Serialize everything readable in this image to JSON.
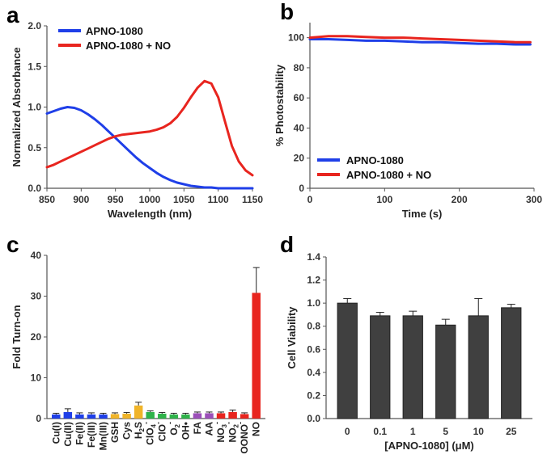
{
  "chart_data": [
    {
      "panel": "a",
      "type": "line",
      "xlabel": "Wavelength (nm)",
      "ylabel": "Normalized Absorbance",
      "xlim": [
        850,
        1150
      ],
      "ylim": [
        0,
        2.0
      ],
      "xticks": [
        "850",
        "900",
        "950",
        "1000",
        "1050",
        "1100",
        "1150"
      ],
      "yticks": [
        "0.0",
        "0.5",
        "1.0",
        "1.5",
        "2.0"
      ],
      "legend_position": "top-left",
      "series": [
        {
          "name": "APNO-1080",
          "color": "#1f3fe8",
          "x": [
            850,
            860,
            870,
            880,
            890,
            900,
            910,
            920,
            930,
            940,
            950,
            960,
            970,
            980,
            990,
            1000,
            1010,
            1020,
            1030,
            1040,
            1050,
            1060,
            1070,
            1080,
            1090,
            1100,
            1110,
            1120,
            1130,
            1140,
            1150
          ],
          "y": [
            0.92,
            0.95,
            0.98,
            1.0,
            0.99,
            0.96,
            0.91,
            0.85,
            0.78,
            0.7,
            0.62,
            0.54,
            0.46,
            0.38,
            0.31,
            0.25,
            0.19,
            0.14,
            0.1,
            0.07,
            0.05,
            0.03,
            0.02,
            0.01,
            0.01,
            0.0,
            0.0,
            0.0,
            0.0,
            0.0,
            0.0
          ]
        },
        {
          "name": "APNO-1080 + NO",
          "color": "#e8251f",
          "x": [
            850,
            860,
            870,
            880,
            890,
            900,
            910,
            920,
            930,
            940,
            950,
            960,
            970,
            980,
            990,
            1000,
            1010,
            1020,
            1030,
            1040,
            1050,
            1060,
            1070,
            1080,
            1090,
            1100,
            1110,
            1120,
            1130,
            1140,
            1150
          ],
          "y": [
            0.26,
            0.29,
            0.33,
            0.37,
            0.41,
            0.45,
            0.49,
            0.53,
            0.57,
            0.61,
            0.64,
            0.66,
            0.67,
            0.68,
            0.69,
            0.7,
            0.72,
            0.75,
            0.8,
            0.88,
            0.99,
            1.12,
            1.24,
            1.32,
            1.29,
            1.12,
            0.82,
            0.52,
            0.33,
            0.22,
            0.16
          ]
        }
      ]
    },
    {
      "panel": "b",
      "type": "line",
      "xlabel": "Time (s)",
      "ylabel": "% Photostability",
      "xlim": [
        0,
        300
      ],
      "ylim": [
        0,
        110
      ],
      "xticks": [
        "0",
        "100",
        "200",
        "300"
      ],
      "yticks": [
        "0",
        "20",
        "40",
        "60",
        "80",
        "100"
      ],
      "legend_position": "bottom-left",
      "series": [
        {
          "name": "APNO-1080",
          "color": "#1f3fe8",
          "x": [
            0,
            25,
            50,
            75,
            100,
            125,
            150,
            175,
            200,
            225,
            250,
            275,
            295
          ],
          "y": [
            99,
            99,
            98.5,
            98,
            98,
            97.5,
            97,
            97,
            96.5,
            96,
            96,
            95.5,
            95.5
          ]
        },
        {
          "name": "APNO-1080 + NO",
          "color": "#e8251f",
          "x": [
            0,
            25,
            50,
            75,
            100,
            125,
            150,
            175,
            200,
            225,
            250,
            275,
            295
          ],
          "y": [
            100,
            101,
            101,
            100.5,
            100,
            100,
            99.5,
            99,
            98.5,
            98,
            97.5,
            97,
            97
          ]
        }
      ]
    },
    {
      "panel": "c",
      "type": "bar",
      "ylabel": "Fold Turn-on",
      "ylim": [
        0,
        40
      ],
      "yticks": [
        "0",
        "10",
        "20",
        "30",
        "40"
      ],
      "categories": [
        {
          "pre": "Cu(I)"
        },
        {
          "pre": "Cu(II)"
        },
        {
          "pre": "Fe(II)"
        },
        {
          "pre": "Fe(III)"
        },
        {
          "pre": "Mn(III)"
        },
        {
          "pre": "GSH"
        },
        {
          "pre": "Cys"
        },
        {
          "pre": "H",
          "sub": "2",
          "post": "S"
        },
        {
          "pre": "ClO",
          "sub": "4",
          "sup": "-"
        },
        {
          "pre": "ClO",
          "sup": "-"
        },
        {
          "pre": "O",
          "sub": "2",
          "sup": "-"
        },
        {
          "pre": "OH•"
        },
        {
          "pre": "FA"
        },
        {
          "pre": "AA"
        },
        {
          "pre": "NO",
          "sub": "3",
          "sup": "-"
        },
        {
          "pre": "NO",
          "sub": "2",
          "sup": "-"
        },
        {
          "pre": "OONO",
          "sup": "-"
        },
        {
          "pre": "NO"
        }
      ],
      "values": [
        1.0,
        1.6,
        1.0,
        1.0,
        1.0,
        1.1,
        1.2,
        3.2,
        1.6,
        1.2,
        1.0,
        1.0,
        1.3,
        1.3,
        1.3,
        1.6,
        1.1,
        30.8
      ],
      "errors": [
        0.3,
        0.8,
        0.4,
        0.4,
        0.3,
        0.3,
        0.3,
        0.8,
        0.3,
        0.3,
        0.3,
        0.3,
        0.3,
        0.3,
        0.3,
        0.5,
        0.3,
        6.2
      ],
      "colors": [
        "#1f3fe8",
        "#1f3fe8",
        "#1f3fe8",
        "#1f3fe8",
        "#1f3fe8",
        "#f0b429",
        "#f0b429",
        "#f0b429",
        "#2fb34a",
        "#2fb34a",
        "#2fb34a",
        "#2fb34a",
        "#9b4fb8",
        "#9b4fb8",
        "#e8251f",
        "#e8251f",
        "#e8251f",
        "#e8251f"
      ]
    },
    {
      "panel": "d",
      "type": "bar",
      "xlabel": "[APNO-1080] (μM)",
      "ylabel": "Cell Viability",
      "ylim": [
        0,
        1.4
      ],
      "yticks": [
        "0.0",
        "0.2",
        "0.4",
        "0.6",
        "0.8",
        "1.0",
        "1.2",
        "1.4"
      ],
      "categories": [
        "0",
        "0.1",
        "1",
        "5",
        "10",
        "25"
      ],
      "values": [
        1.0,
        0.89,
        0.89,
        0.81,
        0.89,
        0.96
      ],
      "errors": [
        0.04,
        0.03,
        0.04,
        0.05,
        0.15,
        0.03
      ],
      "color": "#404040"
    }
  ]
}
